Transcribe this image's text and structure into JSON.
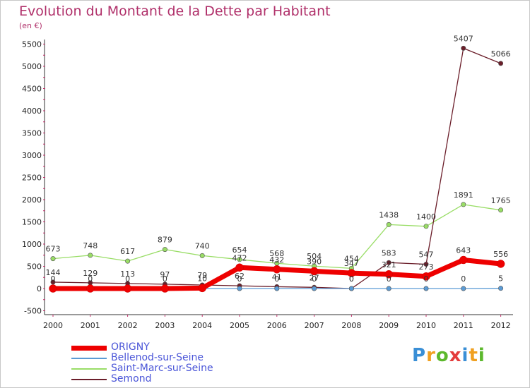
{
  "title": "Evolution du Montant de la Dette par Habitant",
  "unit_label": "(en €)",
  "logo_text": "Proxiti",
  "logo_colors": [
    "#3a8fd6",
    "#f0a020",
    "#5cb82c",
    "#e43c3c",
    "#3a8fd6",
    "#f0a020",
    "#5cb82c"
  ],
  "chart_data": {
    "type": "line",
    "title": "Evolution du Montant de la Dette par Habitant",
    "ylabel": "(en €)",
    "x": [
      "2000",
      "2001",
      "2002",
      "2003",
      "2004",
      "2005",
      "2006",
      "2007",
      "2008",
      "2009",
      "2010",
      "2011",
      "2012"
    ],
    "ylim": [
      -500,
      5500
    ],
    "yticks": [
      -500,
      0,
      500,
      1000,
      1500,
      2000,
      2500,
      3000,
      3500,
      4000,
      4500,
      5000,
      5500
    ],
    "grid": false,
    "legend": "bottom-left",
    "series": [
      {
        "name": "ORIGNY",
        "color": "#ee0000",
        "values": [
          0,
          0,
          0,
          0,
          10,
          472,
          432,
          390,
          347,
          321,
          273,
          643,
          556
        ],
        "labels": [
          true,
          true,
          true,
          true,
          true,
          true,
          true,
          true,
          true,
          true,
          true,
          true,
          true
        ]
      },
      {
        "name": "Bellenod-sur-Seine",
        "color": "#5b9bd5",
        "values": [
          0,
          0,
          0,
          0,
          0,
          0,
          0,
          0,
          0,
          0,
          0,
          0,
          5
        ],
        "labels": [
          false,
          false,
          false,
          false,
          false,
          true,
          true,
          true,
          true,
          true,
          true,
          true,
          true
        ]
      },
      {
        "name": "Saint-Marc-sur-Seine",
        "color": "#99dd66",
        "values": [
          673,
          748,
          617,
          879,
          740,
          654,
          568,
          504,
          454,
          1438,
          1400,
          1891,
          1765
        ],
        "labels": [
          true,
          true,
          true,
          true,
          true,
          true,
          true,
          true,
          true,
          true,
          true,
          true,
          true
        ]
      },
      {
        "name": "Semond",
        "color": "#6b1e2a",
        "values": [
          144,
          129,
          113,
          97,
          79,
          62,
          41,
          27,
          0,
          583,
          547,
          5407,
          5066
        ],
        "labels": [
          true,
          true,
          true,
          true,
          true,
          true,
          true,
          true,
          true,
          true,
          true,
          true,
          true
        ]
      }
    ]
  }
}
